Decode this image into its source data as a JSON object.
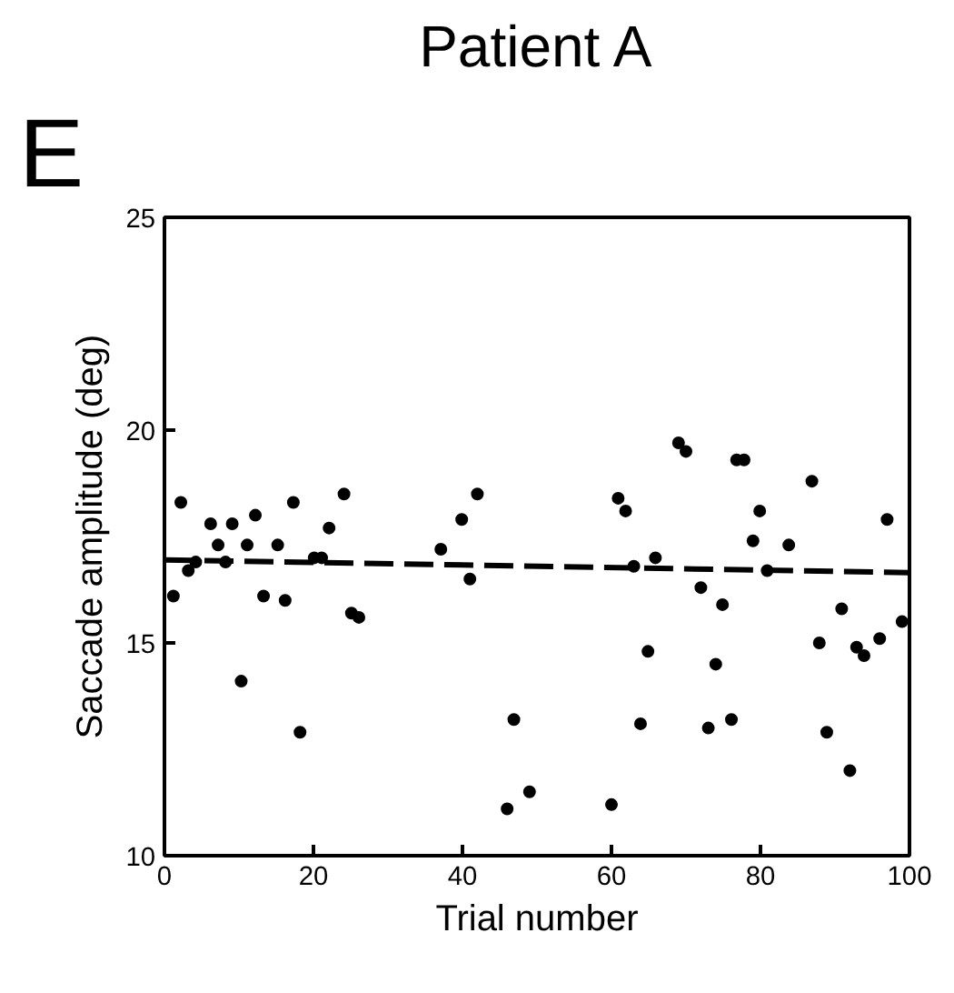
{
  "chart_data": {
    "type": "scatter",
    "title": "Patient A",
    "xlabel": "Trial number",
    "ylabel": "Saccade amplitude (deg)",
    "annotations": [
      "E"
    ],
    "xlim": [
      0,
      100
    ],
    "ylim": [
      10,
      25
    ],
    "xticks": [
      0,
      20,
      40,
      60,
      80,
      100
    ],
    "yticks": [
      10,
      15,
      20,
      25
    ],
    "grid": false,
    "marker": "circle",
    "series": [
      {
        "color": "#000000",
        "x": [
          1.2,
          2.2,
          3.2,
          4.2,
          6.2,
          7.2,
          8.2,
          9.1,
          10.3,
          11.1,
          12.2,
          13.3,
          15.2,
          16.2,
          17.3,
          18.2,
          20.1,
          21.1,
          22.1,
          24.1,
          25.1,
          26.1,
          37.1,
          39.9,
          41.0,
          42.0,
          46.0,
          46.9,
          49.0,
          60.0,
          60.9,
          61.9,
          63.0,
          63.9,
          64.9,
          65.9,
          69.0,
          70.0,
          72.0,
          73.0,
          74.0,
          74.9,
          76.1,
          76.8,
          77.8,
          79.0,
          79.9,
          80.9,
          83.8,
          86.9,
          87.9,
          88.9,
          90.9,
          92.0,
          92.9,
          93.9,
          96.0,
          97.0,
          99.0
        ],
        "values": [
          16.1,
          18.3,
          16.7,
          16.9,
          17.8,
          17.3,
          16.9,
          17.8,
          14.1,
          17.3,
          18.0,
          16.1,
          17.3,
          16.0,
          18.3,
          12.9,
          17.0,
          17.0,
          17.7,
          18.5,
          15.7,
          15.6,
          17.2,
          17.9,
          16.5,
          18.5,
          11.1,
          13.2,
          11.5,
          11.2,
          18.4,
          18.1,
          16.8,
          13.1,
          14.8,
          17.0,
          19.7,
          19.5,
          16.3,
          13.0,
          14.5,
          15.9,
          13.2,
          19.3,
          19.3,
          17.4,
          18.1,
          16.7,
          17.3,
          18.8,
          15.0,
          12.9,
          15.8,
          12.0,
          14.9,
          14.7,
          15.1,
          17.9,
          15.5
        ]
      },
      {
        "type": "line",
        "line_style": "dashed",
        "marker": "none",
        "color": "#000000",
        "x": [
          0,
          100
        ],
        "values": [
          16.95,
          16.65
        ]
      }
    ]
  }
}
